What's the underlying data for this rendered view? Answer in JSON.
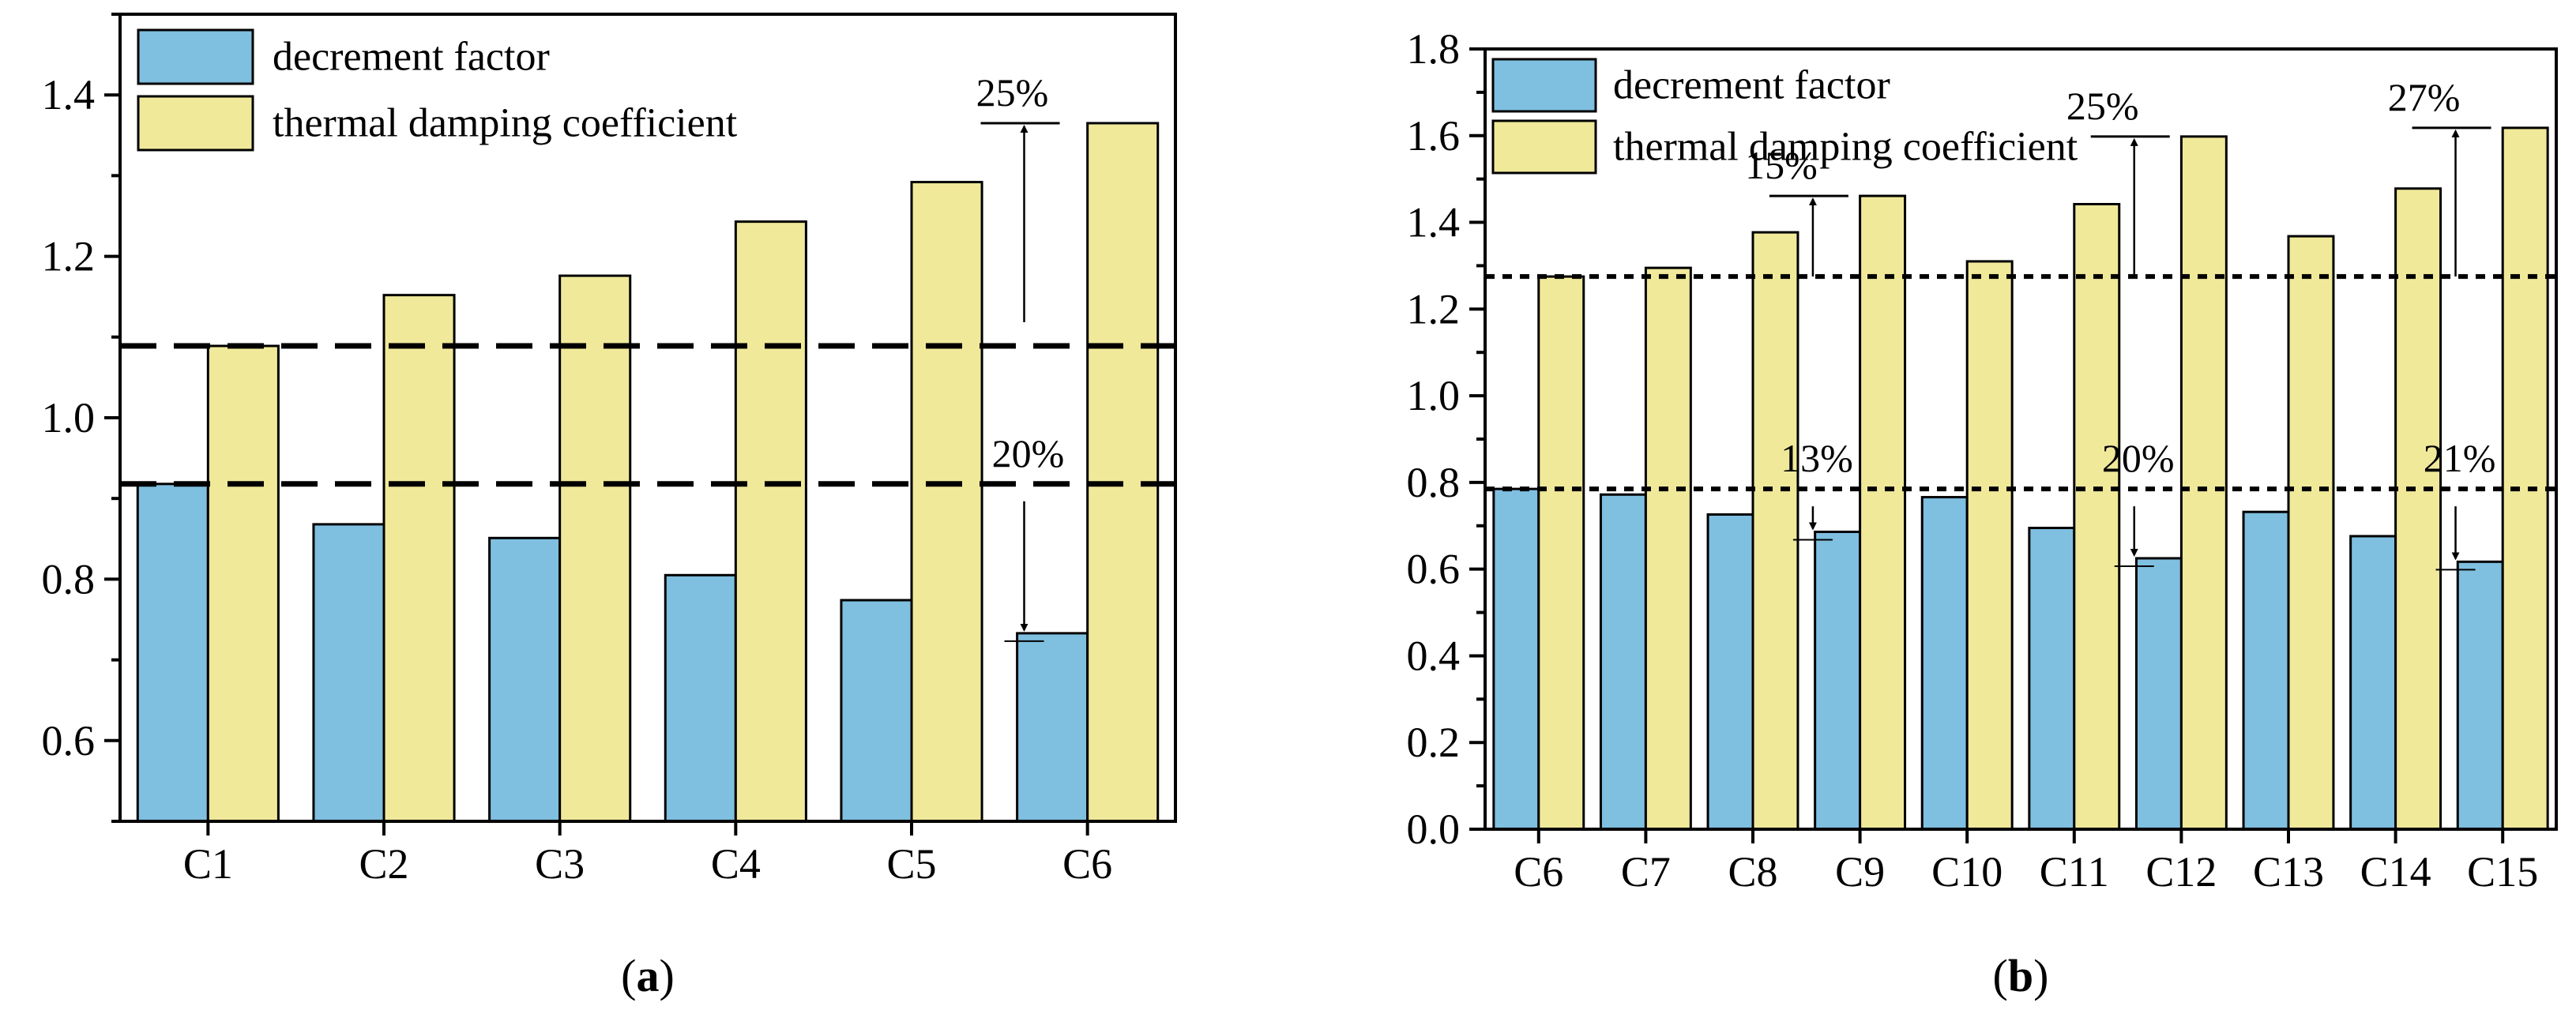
{
  "colors": {
    "decrement": "#7fbfe0",
    "thermal": "#f0e99a",
    "axis": "#000000"
  },
  "chart_data": [
    {
      "type": "bar",
      "panel_label": {
        "open": "(",
        "letter": "a",
        "close": ")"
      },
      "categories": [
        "C1",
        "C2",
        "C3",
        "C4",
        "C5",
        "C6"
      ],
      "series": [
        {
          "name": "decrement factor",
          "values": [
            0.918,
            0.868,
            0.851,
            0.805,
            0.774,
            0.733
          ]
        },
        {
          "name": "thermal damping coefficient",
          "values": [
            1.089,
            1.152,
            1.176,
            1.243,
            1.292,
            1.365
          ]
        }
      ],
      "ylim": [
        0.5,
        1.5
      ],
      "yticks": [
        0.6,
        0.8,
        1.0,
        1.2,
        1.4
      ],
      "ytick_labels": [
        "0.6",
        "0.8",
        "1.0",
        "1.2",
        "1.4"
      ],
      "yminor_step": 0.1,
      "reference_lines": [
        {
          "y": 1.089,
          "style": "dashed"
        },
        {
          "y": 0.918,
          "style": "dashed"
        }
      ],
      "annotations": [
        {
          "text": "25%",
          "category": "C6",
          "from": 1.089,
          "to": 1.365
        },
        {
          "text": "20%",
          "category": "C6",
          "from": 0.918,
          "to": 0.733
        }
      ],
      "legend": {
        "position": "top-left"
      }
    },
    {
      "type": "bar",
      "panel_label": {
        "open": "(",
        "letter": "b",
        "close": ")"
      },
      "categories": [
        "C6",
        "C7",
        "C8",
        "C9",
        "C10",
        "C11",
        "C12",
        "C13",
        "C14",
        "C15"
      ],
      "series": [
        {
          "name": "decrement factor",
          "values": [
            0.785,
            0.772,
            0.726,
            0.686,
            0.766,
            0.695,
            0.625,
            0.732,
            0.676,
            0.617
          ]
        },
        {
          "name": "thermal damping coefficient",
          "values": [
            1.275,
            1.295,
            1.377,
            1.461,
            1.31,
            1.442,
            1.598,
            1.368,
            1.478,
            1.618
          ]
        }
      ],
      "ylim": [
        0.0,
        1.8
      ],
      "yticks": [
        0.0,
        0.2,
        0.4,
        0.6,
        0.8,
        1.0,
        1.2,
        1.4,
        1.6,
        1.8
      ],
      "ytick_labels": [
        "0.0",
        "0.2",
        "0.4",
        "0.6",
        "0.8",
        "1.0",
        "1.2",
        "1.4",
        "1.6",
        "1.8"
      ],
      "yminor_step": 0.1,
      "reference_lines": [
        {
          "y": 1.275,
          "style": "dotted"
        },
        {
          "y": 0.785,
          "style": "dotted"
        }
      ],
      "annotations": [
        {
          "text": "15%",
          "category": "C9",
          "from": 1.275,
          "to": 1.461
        },
        {
          "text": "13%",
          "category": "C9",
          "from": 0.785,
          "to": 0.686
        },
        {
          "text": "25%",
          "category": "C12",
          "from": 1.275,
          "to": 1.598
        },
        {
          "text": "20%",
          "category": "C12",
          "from": 0.785,
          "to": 0.625
        },
        {
          "text": "27%",
          "category": "C15",
          "from": 1.275,
          "to": 1.618
        },
        {
          "text": "21%",
          "category": "C15",
          "from": 0.785,
          "to": 0.617
        }
      ],
      "legend": {
        "position": "top-left"
      }
    }
  ]
}
